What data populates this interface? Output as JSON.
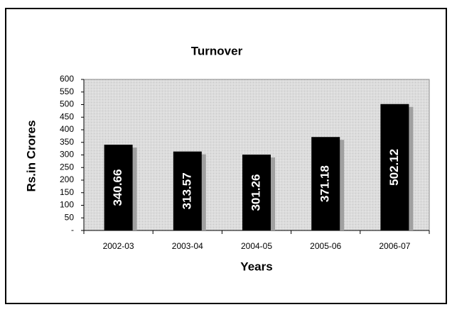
{
  "chart_data": {
    "type": "bar",
    "title": "Turnover",
    "x_label": "Years",
    "y_label": "Rs.in Crores",
    "categories": [
      "2002-03",
      "2003-04",
      "2004-05",
      "2005-06",
      "2006-07"
    ],
    "values": [
      340.66,
      313.57,
      301.26,
      371.18,
      502.12
    ],
    "color": "#000000",
    "ylim": [
      0,
      600
    ],
    "yticks": [
      {
        "value": 0,
        "label": "-"
      },
      50,
      100,
      150,
      200,
      250,
      300,
      350,
      400,
      450,
      500,
      550,
      600
    ]
  }
}
